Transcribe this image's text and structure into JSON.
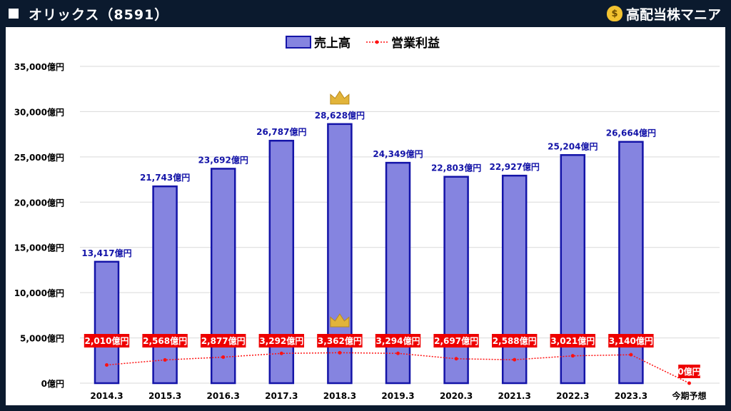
{
  "header": {
    "title": "オリックス（8591）",
    "brand_name": "高配当株マニア",
    "brand_icon": "money-bag-icon"
  },
  "colors": {
    "bar_fill": "#8584e0",
    "bar_stroke": "#1414a8",
    "line": "#ff1111",
    "label_bg": "#ee0000",
    "crown": "#e2b43a"
  },
  "chart_data": {
    "type": "bar",
    "categories": [
      "2014.3",
      "2015.3",
      "2016.3",
      "2017.3",
      "2018.3",
      "2019.3",
      "2020.3",
      "2021.3",
      "2022.3",
      "2023.3",
      "今期予想"
    ],
    "series": [
      {
        "name": "売上高",
        "type": "bar",
        "values": [
          13417,
          21743,
          23692,
          26787,
          28628,
          24349,
          22803,
          22927,
          25204,
          26664,
          null
        ],
        "labels": [
          "13,417億円",
          "21,743億円",
          "23,692億円",
          "26,787億円",
          "28,628億円",
          "24,349億円",
          "22,803億円",
          "22,927億円",
          "25,204億円",
          "26,664億円",
          ""
        ]
      },
      {
        "name": "営業利益",
        "type": "line",
        "values": [
          2010,
          2568,
          2877,
          3292,
          3362,
          3294,
          2697,
          2588,
          3021,
          3140,
          0
        ],
        "labels": [
          "2,010億円",
          "2,568億円",
          "2,877億円",
          "3,292億円",
          "3,362億円",
          "3,294億円",
          "2,697億円",
          "2,588億円",
          "3,021億円",
          "3,140億円",
          "0億円"
        ]
      }
    ],
    "ylim": [
      0,
      35000
    ],
    "yticks": [
      0,
      5000,
      10000,
      15000,
      20000,
      25000,
      30000,
      35000
    ],
    "ytick_labels": [
      "0億円",
      "5,000億円",
      "10,000億円",
      "15,000億円",
      "20,000億円",
      "25,000億円",
      "30,000億円",
      "35,000億円"
    ],
    "grid": true,
    "legend_position": "top",
    "highlight_max": {
      "series": [
        "売上高",
        "営業利益"
      ],
      "category": "2018.3",
      "marker": "crown"
    }
  }
}
